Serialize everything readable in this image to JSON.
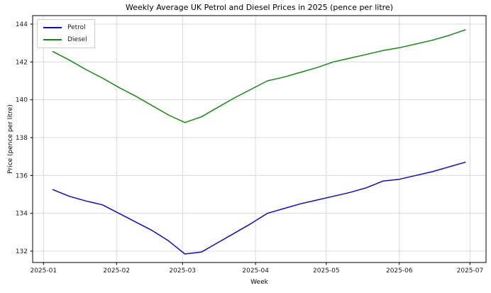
{
  "chart_data": {
    "type": "line",
    "title": "Weekly Average UK Petrol and Diesel Prices in 2025 (pence per litre)",
    "xlabel": "Week",
    "ylabel": "Price (pence per litre)",
    "grid": true,
    "legend_position": "upper left",
    "x_tick_labels": [
      "2025-01",
      "2025-02",
      "2025-03",
      "2025-04",
      "2025-05",
      "2025-06",
      "2025-07"
    ],
    "x_tick_days": [
      0,
      31,
      59,
      90,
      120,
      151,
      181
    ],
    "y_ticks": [
      132,
      134,
      136,
      138,
      140,
      142,
      144
    ],
    "xlim_days": [
      -4.6,
      187.8
    ],
    "ylim": [
      131.4,
      144.45
    ],
    "weeks": [
      "2025-01-05",
      "2025-01-12",
      "2025-01-19",
      "2025-01-26",
      "2025-02-02",
      "2025-02-09",
      "2025-02-16",
      "2025-02-23",
      "2025-03-02",
      "2025-03-09",
      "2025-03-16",
      "2025-03-23",
      "2025-03-30",
      "2025-04-06",
      "2025-04-13",
      "2025-04-20",
      "2025-04-27",
      "2025-05-04",
      "2025-05-11",
      "2025-05-18",
      "2025-05-25",
      "2025-06-01",
      "2025-06-08",
      "2025-06-15",
      "2025-06-22",
      "2025-06-29"
    ],
    "x_days": [
      4,
      11,
      18,
      25,
      32,
      39,
      46,
      53,
      60,
      67,
      74,
      81,
      88,
      95,
      102,
      109,
      116,
      123,
      130,
      137,
      144,
      151,
      158,
      165,
      172,
      179
    ],
    "series": [
      {
        "name": "Petrol",
        "color": "#0b0bd0",
        "values": [
          135.25,
          134.9,
          134.65,
          134.45,
          134.0,
          133.55,
          133.1,
          132.55,
          131.85,
          131.95,
          132.45,
          132.95,
          133.45,
          134.0,
          134.25,
          134.5,
          134.7,
          134.9,
          135.1,
          135.35,
          135.7,
          135.8,
          136.0,
          136.2,
          136.45,
          136.7
        ]
      },
      {
        "name": "Diesel",
        "color": "#138a13",
        "values": [
          142.55,
          142.1,
          141.6,
          141.15,
          140.65,
          140.2,
          139.7,
          139.2,
          138.8,
          139.1,
          139.6,
          140.1,
          140.55,
          141.0,
          141.2,
          141.45,
          141.7,
          142.0,
          142.2,
          142.4,
          142.6,
          142.75,
          142.95,
          143.15,
          143.4,
          143.7
        ]
      }
    ],
    "colors": {
      "grid": "#d9d9d9",
      "spine": "#000000",
      "tick_label": "#1a1a1a",
      "background": "#ffffff"
    }
  }
}
